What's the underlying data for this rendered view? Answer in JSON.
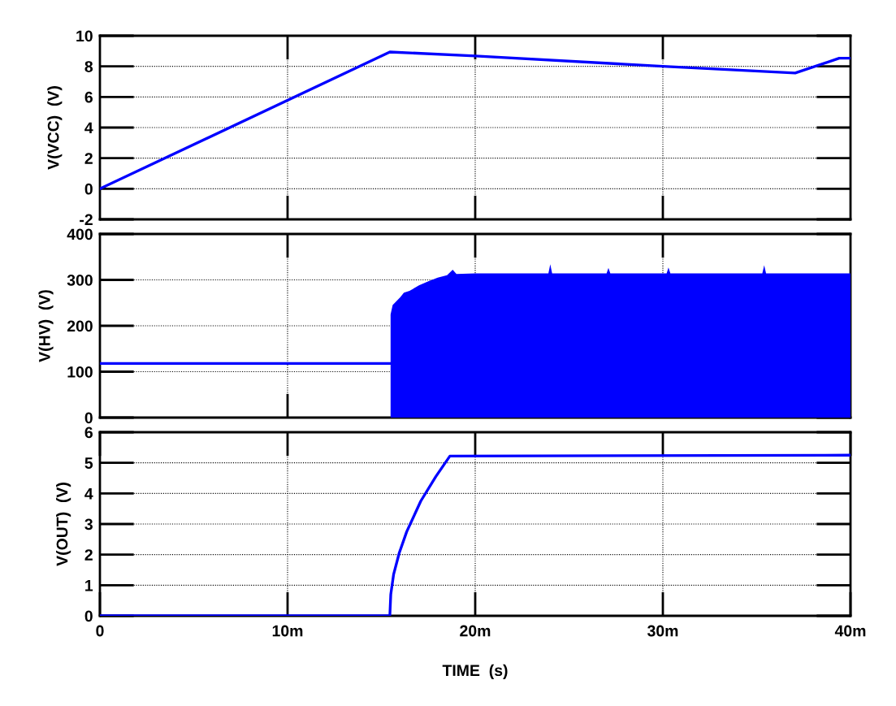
{
  "chart_data": [
    {
      "type": "line",
      "ylabel": "V(VCC)  (V)",
      "xlim": [
        0,
        40
      ],
      "xticks": [
        10,
        20,
        30
      ],
      "ylim": [
        -2,
        10
      ],
      "yticks": [
        -2,
        0,
        2,
        4,
        6,
        8,
        10
      ],
      "grid": true,
      "tick_labels": "y",
      "series": [
        {
          "color": "#0000ff",
          "x": [
            0,
            15.45,
            20,
            30,
            37.05,
            39.4,
            40
          ],
          "values": [
            0,
            8.94,
            8.68,
            8.0,
            7.56,
            8.53,
            8.53
          ]
        }
      ]
    },
    {
      "type": "line",
      "ylabel": "V(HV)  (V)",
      "xlim": [
        0,
        40
      ],
      "xticks": [
        10,
        20,
        30
      ],
      "ylim": [
        0,
        400
      ],
      "yticks": [
        0,
        100,
        200,
        300,
        400
      ],
      "grid": true,
      "tick_labels": "y",
      "series": [
        {
          "color": "#0000ff",
          "x": [
            0,
            15.49,
            15.6,
            16,
            16.2,
            16.5,
            17,
            17.5,
            18,
            18.5,
            18.8,
            19,
            20,
            23.9,
            24,
            24.1,
            27,
            27.1,
            27.2,
            30.2,
            30.3,
            30.4,
            35.3,
            35.4,
            35.5,
            40
          ],
          "values": [
            118,
            118,
            null,
            null,
            null,
            null,
            null,
            null,
            null,
            null,
            null,
            null,
            null,
            null,
            null,
            null,
            null,
            null,
            null,
            null,
            null,
            null,
            null,
            null,
            null,
            null
          ],
          "lower": [
            null,
            0,
            0,
            0,
            0,
            0,
            0,
            0,
            0,
            0,
            0,
            0,
            0,
            0,
            0,
            0,
            0,
            0,
            0,
            0,
            0,
            0,
            0,
            0,
            0,
            0
          ],
          "upper": [
            null,
            225,
            245,
            262,
            272,
            276,
            288,
            297,
            305,
            310,
            322,
            313,
            314,
            314,
            334,
            314,
            314,
            326,
            314,
            314,
            327,
            314,
            314,
            332,
            314,
            314
          ]
        }
      ]
    },
    {
      "type": "line",
      "ylabel": "V(OUT)  (V)",
      "xlabel": "TIME  (s)",
      "xlim": [
        0,
        40
      ],
      "xticks": [
        0,
        {
          "value": 10,
          "label": "10m"
        },
        {
          "value": 20,
          "label": "20m"
        },
        {
          "value": 30,
          "label": "30m"
        },
        {
          "value": 40,
          "label": "40m"
        }
      ],
      "ylim": [
        0,
        6
      ],
      "yticks": [
        0,
        1,
        2,
        3,
        4,
        5,
        6
      ],
      "grid": true,
      "series": [
        {
          "color": "#0000ff",
          "x": [
            0,
            15.45,
            15.5,
            15.65,
            15.95,
            16.35,
            17.1,
            17.9,
            18.65,
            40
          ],
          "values": [
            0,
            0,
            0.7,
            1.35,
            2.05,
            2.75,
            3.75,
            4.55,
            5.22,
            5.25
          ]
        }
      ]
    }
  ]
}
